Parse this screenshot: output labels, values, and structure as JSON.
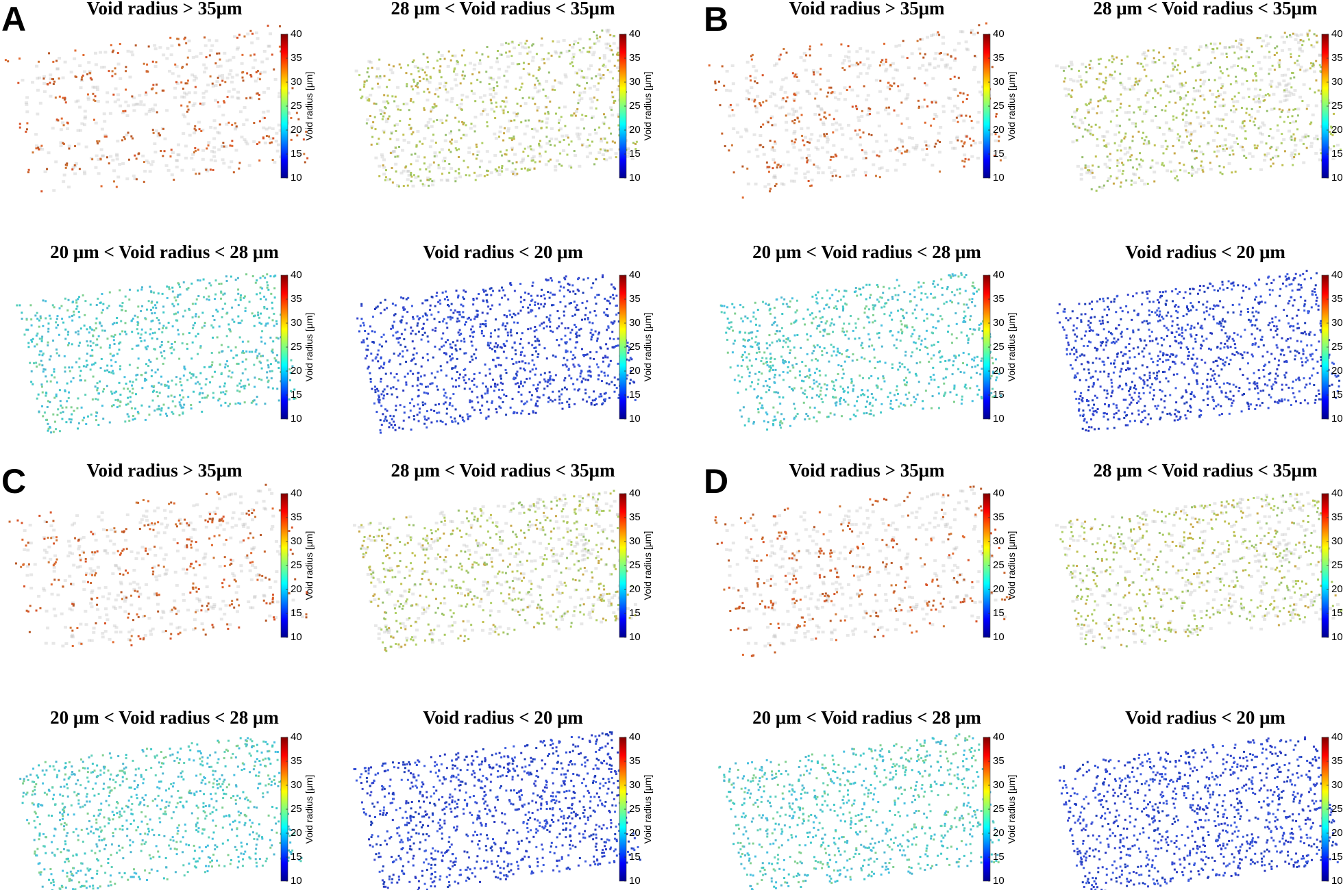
{
  "groups": [
    {
      "label": "A",
      "panels": [
        {
          "title": "Void radius > 35μm"
        },
        {
          "title": "28 μm < Void radius < 35μm"
        },
        {
          "title": "20 μm < Void radius < 28 μm"
        },
        {
          "title": "Void radius < 20 μm"
        }
      ]
    },
    {
      "label": "B",
      "panels": [
        {
          "title": "Void radius > 35μm"
        },
        {
          "title": "28 μm < Void radius < 35μm"
        },
        {
          "title": "20 μm < Void radius < 28 μm"
        },
        {
          "title": "Void radius < 20 μm"
        }
      ]
    },
    {
      "label": "C",
      "panels": [
        {
          "title": "Void radius > 35μm"
        },
        {
          "title": "28 μm < Void radius < 35μm"
        },
        {
          "title": "20 μm < Void radius < 28 μm"
        },
        {
          "title": "Void radius < 20 μm"
        }
      ]
    },
    {
      "label": "D",
      "panels": [
        {
          "title": "Void radius > 35μm"
        },
        {
          "title": "28 μm < Void radius < 35μm"
        },
        {
          "title": "20 μm < Void radius < 28 μm"
        },
        {
          "title": "Void radius < 20 μm"
        }
      ]
    }
  ],
  "colorbar": {
    "label": "Void radius [μm]",
    "range": [
      10,
      40
    ],
    "ticks": [
      10,
      15,
      20,
      25,
      30,
      35,
      40
    ]
  }
}
